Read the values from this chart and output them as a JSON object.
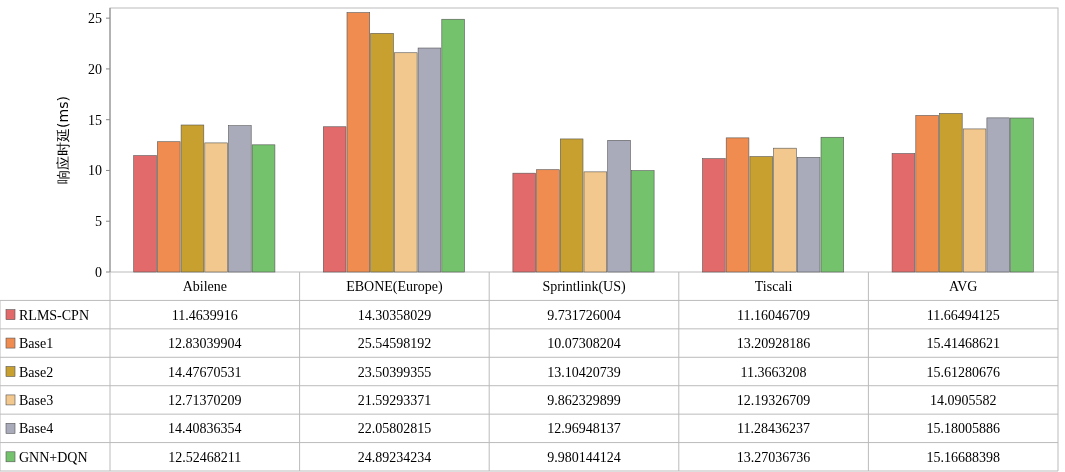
{
  "chart_data": {
    "type": "bar",
    "ylabel": "响应时延(ms)",
    "categories": [
      "Abilene",
      "EBONE(Europe)",
      "Sprintlink(US)",
      "Tiscali",
      "AVG"
    ],
    "series": [
      {
        "name": "RLMS-CPN",
        "color": "#e36a6a",
        "values": [
          11.4639916,
          14.30358029,
          9.731726004,
          11.16046709,
          11.66494125
        ]
      },
      {
        "name": "Base1",
        "color": "#f08c50",
        "values": [
          12.83039904,
          25.54598192,
          10.07308204,
          13.20928186,
          15.41468621
        ]
      },
      {
        "name": "Base2",
        "color": "#c8a030",
        "values": [
          14.47670531,
          23.50399355,
          13.10420739,
          11.3663208,
          15.61280676
        ]
      },
      {
        "name": "Base3",
        "color": "#f2c88e",
        "values": [
          12.71370209,
          21.59293371,
          9.862329899,
          12.19326709,
          14.0905582
        ]
      },
      {
        "name": "Base4",
        "color": "#a9abbb",
        "values": [
          14.40836354,
          22.05802815,
          12.96948137,
          11.28436237,
          15.18005886
        ]
      },
      {
        "name": "GNN+DQN",
        "color": "#74c26c",
        "values": [
          12.52468211,
          24.89234234,
          9.980144124,
          13.27036736,
          15.16688398
        ]
      }
    ],
    "ylim": [
      0,
      26
    ],
    "yticks": [
      0,
      5,
      10,
      15,
      20,
      25
    ],
    "data_labels": true,
    "legend": "bottom"
  }
}
